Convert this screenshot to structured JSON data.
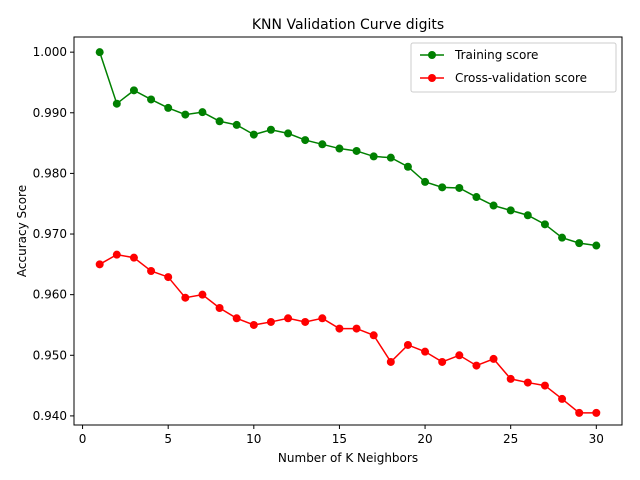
{
  "chart_data": {
    "type": "line",
    "title": "KNN Validation Curve digits",
    "xlabel": "Number of K Neighbors",
    "ylabel": "Accuracy Score",
    "xlim": [
      -0.5,
      31.5
    ],
    "ylim": [
      0.9385,
      1.0025
    ],
    "xticks": [
      0,
      5,
      10,
      15,
      20,
      25,
      30
    ],
    "xtick_labels": [
      "0",
      "5",
      "10",
      "15",
      "20",
      "25",
      "30"
    ],
    "yticks": [
      0.94,
      0.95,
      0.96,
      0.97,
      0.98,
      0.99,
      1.0
    ],
    "ytick_labels": [
      "0.940",
      "0.950",
      "0.960",
      "0.970",
      "0.980",
      "0.990",
      "1.000"
    ],
    "grid": false,
    "legend_position": "top-right",
    "x": [
      1,
      2,
      3,
      4,
      5,
      6,
      7,
      8,
      9,
      10,
      11,
      12,
      13,
      14,
      15,
      16,
      17,
      18,
      19,
      20,
      21,
      22,
      23,
      24,
      25,
      26,
      27,
      28,
      29,
      30
    ],
    "series": [
      {
        "name": "Training score",
        "color": "#008000",
        "marker": "circle",
        "values": [
          1.0,
          0.9915,
          0.9937,
          0.9922,
          0.9908,
          0.9897,
          0.9901,
          0.9886,
          0.988,
          0.9864,
          0.9872,
          0.9866,
          0.9855,
          0.9848,
          0.9841,
          0.9837,
          0.9828,
          0.9826,
          0.9811,
          0.9786,
          0.9777,
          0.9776,
          0.9761,
          0.9747,
          0.9739,
          0.9731,
          0.9716,
          0.9694,
          0.9685,
          0.9681
        ]
      },
      {
        "name": "Cross-validation score",
        "color": "#ff0000",
        "marker": "circle",
        "values": [
          0.965,
          0.9666,
          0.9661,
          0.9639,
          0.9629,
          0.9595,
          0.96,
          0.9578,
          0.9561,
          0.955,
          0.9555,
          0.9561,
          0.9555,
          0.9561,
          0.9544,
          0.9544,
          0.9533,
          0.9489,
          0.9517,
          0.9506,
          0.9489,
          0.95,
          0.9483,
          0.9494,
          0.9461,
          0.9455,
          0.945,
          0.9428,
          0.9405,
          0.9405
        ]
      }
    ]
  }
}
